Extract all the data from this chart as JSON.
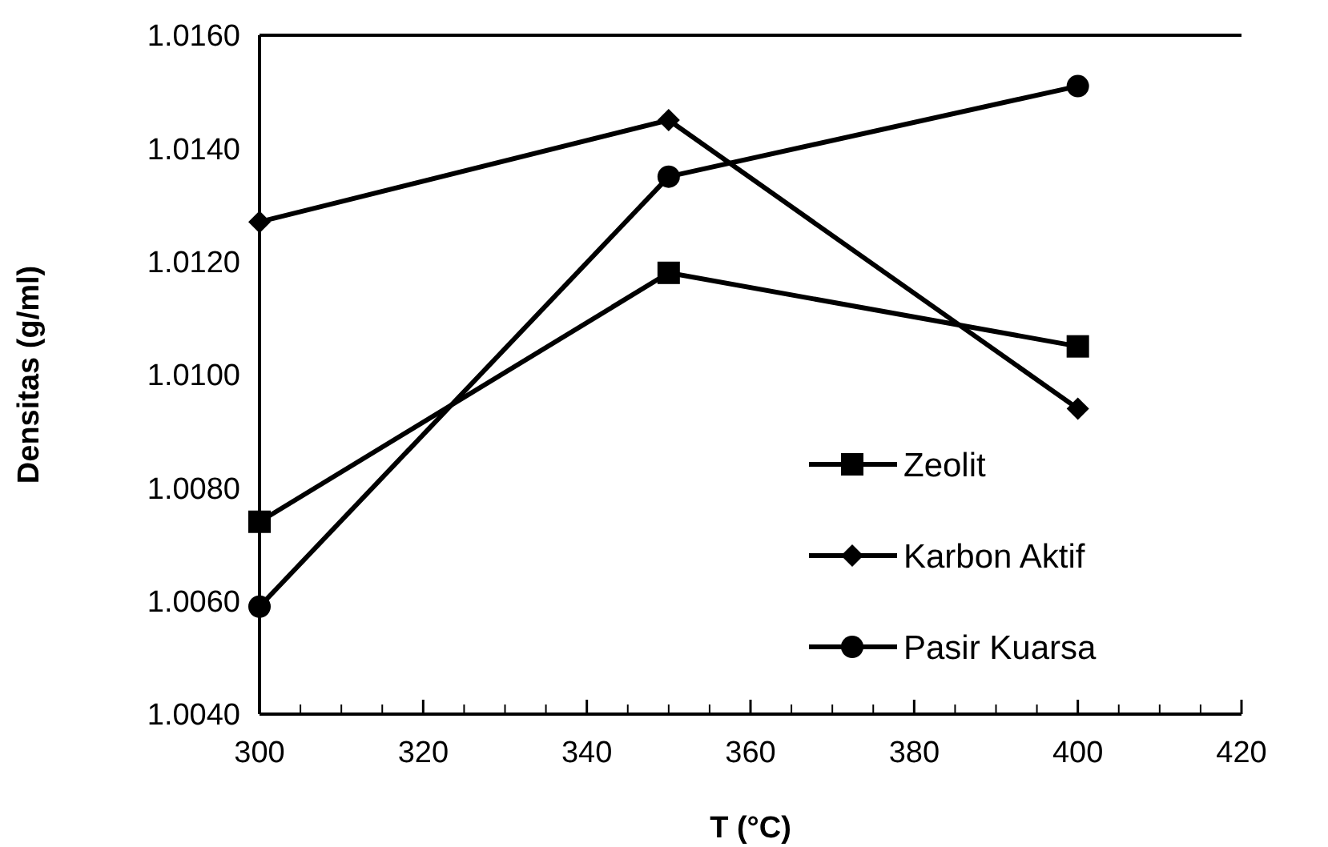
{
  "chart_data": {
    "type": "line",
    "xlabel": "T (°C)",
    "ylabel": "Densitas (g/ml)",
    "x": [
      300,
      350,
      400
    ],
    "xlim": [
      300,
      420
    ],
    "xticks": [
      300,
      320,
      340,
      360,
      380,
      400,
      420
    ],
    "ylim": [
      1.004,
      1.016
    ],
    "yticks": [
      {
        "value": 1.004,
        "label": "1.0040"
      },
      {
        "value": 1.006,
        "label": "1.0060"
      },
      {
        "value": 1.008,
        "label": "1.0080"
      },
      {
        "value": 1.01,
        "label": "1.0100"
      },
      {
        "value": 1.012,
        "label": "1.0120"
      },
      {
        "value": 1.014,
        "label": "1.0140"
      },
      {
        "value": 1.016,
        "label": "1.0160"
      }
    ],
    "grid": false,
    "legend": "bottom right",
    "line_style": "solid",
    "series": [
      {
        "name": "Zeolit",
        "color": "#000000",
        "marker": "square",
        "values": [
          1.0074,
          1.0118,
          1.0105
        ]
      },
      {
        "name": "Karbon Aktif",
        "color": "#000000",
        "marker": "diamond",
        "values": [
          1.0127,
          1.0145,
          1.0094
        ]
      },
      {
        "name": "Pasir Kuarsa",
        "color": "#000000",
        "marker": "circle",
        "values": [
          1.0059,
          1.0135,
          1.0151
        ]
      }
    ]
  }
}
